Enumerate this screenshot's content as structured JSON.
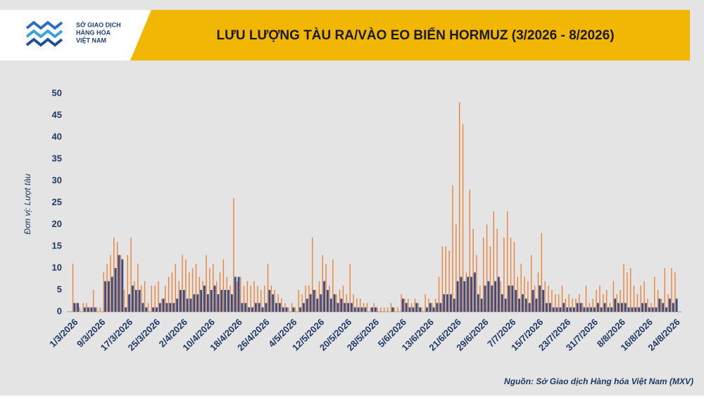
{
  "logo": [
    "SỞ GIAO DỊCH",
    "HÀNG HÓA",
    "VIỆT NAM"
  ],
  "chart_data": {
    "type": "bar",
    "title": "LƯU LƯỢNG TÀU RA/VÀO EO BIỂN HORMUZ (3/2026 - 8/2026)",
    "y_label": "Đơn vị: Lượt tàu",
    "source": "Nguồn: Sở Giao dịch Hàng hóa Việt Nam (MXV)",
    "categories": [
      "1/3/2026",
      null,
      null,
      null,
      null,
      null,
      null,
      null,
      "9/3/2026",
      null,
      null,
      null,
      null,
      null,
      null,
      null,
      "17/3/2026",
      null,
      null,
      null,
      null,
      null,
      null,
      null,
      "25/3/2026",
      null,
      null,
      null,
      null,
      null,
      null,
      null,
      "2/4/2026",
      null,
      null,
      null,
      null,
      null,
      null,
      null,
      "10/4/2026",
      null,
      null,
      null,
      null,
      null,
      null,
      null,
      "18/4/2026",
      null,
      null,
      null,
      null,
      null,
      null,
      null,
      "26/4/2026",
      null,
      null,
      null,
      null,
      null,
      null,
      null,
      "4/5/2026",
      null,
      null,
      null,
      null,
      null,
      null,
      null,
      "12/5/2026",
      null,
      null,
      null,
      null,
      null,
      null,
      null,
      "20/5/2026",
      null,
      null,
      null,
      null,
      null,
      null,
      null,
      "28/5/2026",
      null,
      null,
      null,
      null,
      null,
      null,
      null,
      "5/6/2026",
      null,
      null,
      null,
      null,
      null,
      null,
      null,
      "13/6/2026",
      null,
      null,
      null,
      null,
      null,
      null,
      null,
      "21/6/2026",
      null,
      null,
      null,
      null,
      null,
      null,
      null,
      "29/6/2026",
      null,
      null,
      null,
      null,
      null,
      null,
      null,
      "7/7/2026",
      null,
      null,
      null,
      null,
      null,
      null,
      null,
      "15/7/2026",
      null,
      null,
      null,
      null,
      null,
      null,
      null,
      "23/7/2026",
      null,
      null,
      null,
      null,
      null,
      null,
      null,
      "31/7/2026",
      null,
      null,
      null,
      null,
      null,
      null,
      null,
      "8/8/2026",
      null,
      null,
      null,
      null,
      null,
      null,
      null,
      "16/8/2026",
      null,
      null,
      null,
      null,
      null,
      null,
      null,
      "24/8/2026"
    ],
    "series": [
      {
        "color": "#e8833a",
        "values": [
          11,
          2,
          1,
          2,
          2,
          1,
          5,
          1,
          1,
          9,
          11,
          13,
          17,
          16,
          13,
          5,
          13,
          17,
          7,
          11,
          6,
          7,
          2,
          6,
          6,
          7,
          3,
          6,
          8,
          9,
          11,
          7,
          13,
          12,
          9,
          10,
          11,
          8,
          7,
          13,
          10,
          11,
          7,
          9,
          12,
          8,
          6,
          26,
          7,
          8,
          6,
          7,
          6,
          7,
          6,
          5,
          6,
          11,
          6,
          5,
          4,
          3,
          2,
          1,
          2,
          1,
          5,
          4,
          6,
          6,
          17,
          5,
          7,
          13,
          11,
          6,
          12,
          4,
          5,
          6,
          4,
          11,
          4,
          3,
          3,
          2,
          2,
          1,
          2,
          1,
          1,
          1,
          1,
          2,
          1,
          1,
          4,
          3,
          3,
          2,
          3,
          2,
          1,
          4,
          3,
          2,
          3,
          8,
          15,
          15,
          14,
          29,
          20,
          48,
          43,
          9,
          28,
          19,
          13,
          6,
          17,
          20,
          15,
          23,
          19,
          7,
          17,
          23,
          17,
          16,
          8,
          11,
          8,
          7,
          13,
          6,
          9,
          18,
          7,
          6,
          5,
          4,
          4,
          6,
          3,
          4,
          3,
          3,
          4,
          2,
          6,
          2,
          3,
          5,
          6,
          4,
          5,
          2,
          7,
          4,
          5,
          11,
          9,
          10,
          6,
          4,
          6,
          7,
          3,
          2,
          8,
          5,
          3,
          10,
          4,
          10,
          9
        ]
      },
      {
        "color": "#2f4d8f",
        "values": [
          2,
          2,
          0,
          1,
          1,
          1,
          1,
          0,
          0,
          7,
          7,
          8,
          10,
          13,
          12,
          1,
          4,
          6,
          5,
          5,
          2,
          1,
          0,
          1,
          1,
          2,
          3,
          2,
          2,
          2,
          3,
          5,
          5,
          3,
          3,
          4,
          4,
          5,
          6,
          4,
          5,
          6,
          4,
          5,
          5,
          5,
          4,
          8,
          8,
          2,
          2,
          1,
          1,
          2,
          2,
          1,
          2,
          5,
          4,
          2,
          2,
          1,
          1,
          0,
          1,
          0,
          1,
          2,
          3,
          4,
          5,
          3,
          4,
          7,
          5,
          3,
          4,
          2,
          3,
          2,
          2,
          2,
          1,
          1,
          1,
          1,
          0,
          1,
          1,
          0,
          0,
          0,
          0,
          1,
          0,
          0,
          3,
          2,
          1,
          1,
          2,
          1,
          0,
          1,
          2,
          1,
          2,
          2,
          4,
          4,
          4,
          3,
          7,
          8,
          7,
          8,
          8,
          9,
          4,
          3,
          6,
          7,
          6,
          7,
          8,
          4,
          3,
          6,
          6,
          5,
          3,
          4,
          3,
          2,
          5,
          3,
          6,
          5,
          2,
          2,
          1,
          1,
          1,
          2,
          1,
          1,
          1,
          2,
          2,
          1,
          1,
          1,
          1,
          2,
          1,
          2,
          1,
          1,
          3,
          2,
          2,
          2,
          1,
          1,
          1,
          1,
          2,
          2,
          1,
          1,
          1,
          3,
          2,
          1,
          3,
          2,
          3
        ]
      }
    ],
    "ylim": [
      0,
      50
    ],
    "yticks": [
      0,
      5,
      10,
      15,
      20,
      25,
      30,
      35,
      40,
      45,
      50
    ]
  }
}
